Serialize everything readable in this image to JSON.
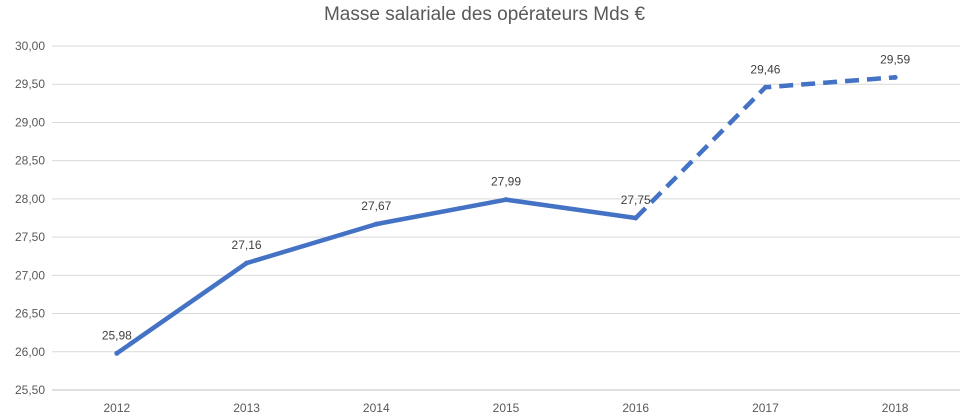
{
  "chart_data": {
    "type": "line",
    "title": "Masse salariale des opérateurs Mds €",
    "xlabel": "",
    "ylabel": "",
    "categories": [
      "2012",
      "2013",
      "2014",
      "2015",
      "2016",
      "2017",
      "2018"
    ],
    "series": [
      {
        "values": [
          25.98,
          27.16,
          27.67,
          27.99,
          27.75,
          29.46,
          29.59
        ],
        "data_labels": [
          "25,98",
          "27,16",
          "27,67",
          "27,99",
          "27,75",
          "29,46",
          "29,59"
        ],
        "color": "#4472C4",
        "line_style": "solid from 2012 to 2016, dashed from 2016 to 2018"
      }
    ],
    "ylim": [
      25.5,
      30.0
    ],
    "y_ticks": [
      {
        "value": 25.5,
        "label": "25,50"
      },
      {
        "value": 26.0,
        "label": "26,00"
      },
      {
        "value": 26.5,
        "label": "26,50"
      },
      {
        "value": 27.0,
        "label": "27,00"
      },
      {
        "value": 27.5,
        "label": "27,50"
      },
      {
        "value": 28.0,
        "label": "28,00"
      },
      {
        "value": 28.5,
        "label": "28,50"
      },
      {
        "value": 29.0,
        "label": "29,00"
      },
      {
        "value": 29.5,
        "label": "29,50"
      },
      {
        "value": 30.0,
        "label": "30,00"
      }
    ],
    "grid": true,
    "legend": "none",
    "colors": {
      "line": "#4472C4",
      "grid": "#D9D9D9",
      "axis": "#BFBFBF",
      "text": "#595959"
    }
  }
}
